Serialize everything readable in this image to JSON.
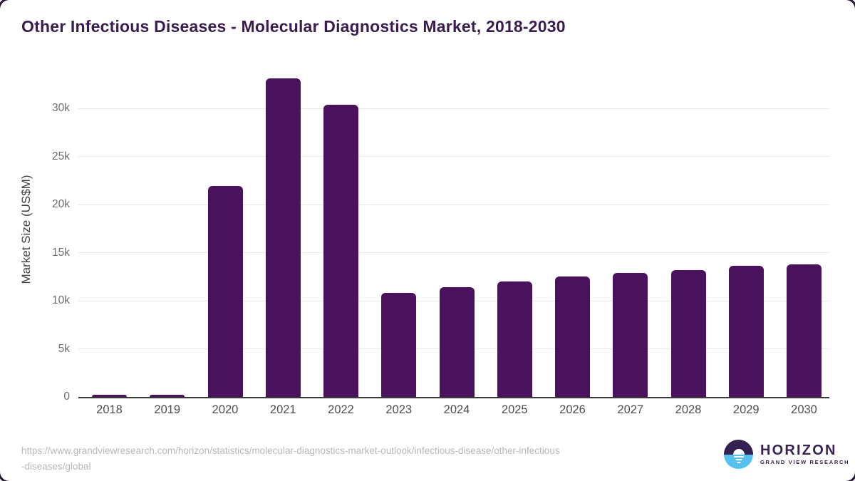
{
  "title": "Other Infectious Diseases - Molecular Diagnostics Market, 2018-2030",
  "chart_data": {
    "type": "bar",
    "categories": [
      "2018",
      "2019",
      "2020",
      "2021",
      "2022",
      "2023",
      "2024",
      "2025",
      "2026",
      "2027",
      "2028",
      "2029",
      "2030"
    ],
    "values": [
      200,
      210,
      21900,
      33100,
      30400,
      10800,
      11400,
      12000,
      12500,
      12900,
      13200,
      13600,
      13800
    ],
    "title": "Other Infectious Diseases - Molecular Diagnostics Market, 2018-2030",
    "xlabel": "",
    "ylabel": "Market Size (US$M)",
    "ylim": [
      0,
      34000
    ],
    "yticks": [
      0,
      5000,
      10000,
      15000,
      20000,
      25000,
      30000
    ],
    "ytick_labels": [
      "0",
      "5k",
      "10k",
      "15k",
      "20k",
      "25k",
      "30k"
    ],
    "grid": "horizontal",
    "legend": "none",
    "bar_color": "#4a115c"
  },
  "footer": {
    "source_url_line1": "https://www.grandviewresearch.com/horizon/statistics/molecular-diagnostics-market-outlook/infectious-disease/other-infectious",
    "source_url_line2": "-diseases/global",
    "logo_title": "HORIZON",
    "logo_subtitle": "GRAND VIEW RESEARCH"
  },
  "colors": {
    "bar": "#4a115c",
    "title_text": "#3a1d4f",
    "axis_line": "#3a3a3a",
    "gridline": "#e8e8e8",
    "tick_text": "#6e6e6e",
    "xtick_text": "#4d4d4d",
    "url_text": "#b8b8b8",
    "logo_purple": "#342051",
    "logo_blue": "#56c1ee"
  }
}
